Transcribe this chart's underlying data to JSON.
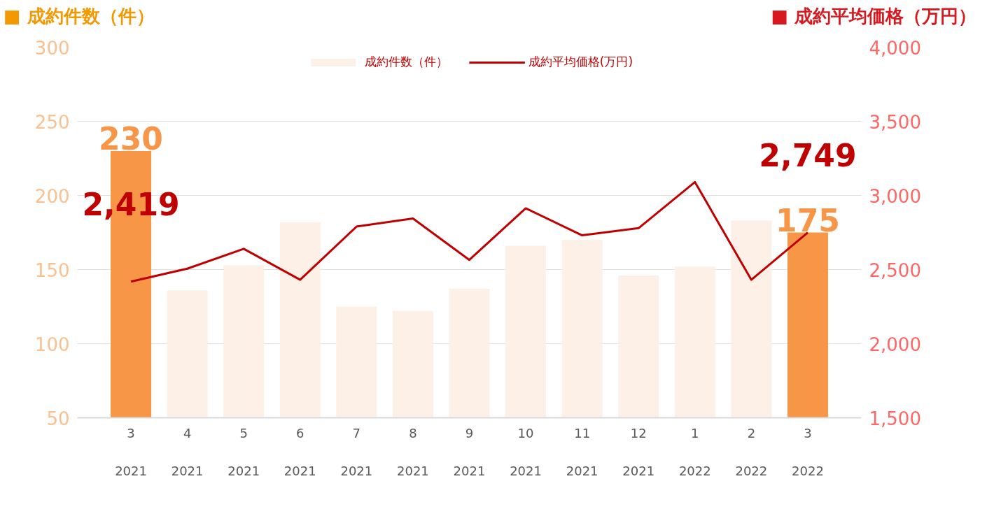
{
  "chart_data": {
    "type": "bar",
    "ylabel": "■ 成約件数（件）",
    "y2label": "■ 成約平均価格（万円）",
    "categories": [
      "3\n2021",
      "4\n2021",
      "5\n2021",
      "6\n2021",
      "7\n2021",
      "8\n2021",
      "9\n2021",
      "10\n2021",
      "11\n2021",
      "12\n2021",
      "1\n2022",
      "2\n2022",
      "3\n2022"
    ],
    "series": [
      {
        "name": "成約件数（件）",
        "color": "#fdf0e6",
        "colors": [
          "#f79646",
          "#fdf0e6",
          "#fdf0e6",
          "#fdf0e6",
          "#fdf0e6",
          "#fdf0e6",
          "#fdf0e6",
          "#fdf0e6",
          "#fdf0e6",
          "#fdf0e6",
          "#fdf0e6",
          "#fdf0e6",
          "#f79646"
        ],
        "values": [
          230,
          136,
          153,
          182,
          125,
          122,
          137,
          166,
          170,
          146,
          152,
          183,
          175
        ],
        "value_labels": [
          "230",
          null,
          null,
          null,
          null,
          null,
          null,
          null,
          null,
          null,
          null,
          null,
          "175"
        ]
      },
      {
        "name": "成約平均価格(万円)",
        "type": "line",
        "axis": "y2",
        "color": "#c00000",
        "values": [
          2419,
          2506,
          2640,
          2431,
          2790,
          2844,
          2565,
          2913,
          2731,
          2779,
          3090,
          2431,
          2749
        ],
        "value_labels": [
          "2,419",
          null,
          null,
          null,
          null,
          null,
          null,
          null,
          null,
          null,
          null,
          null,
          "2,749"
        ]
      }
    ],
    "ylim": [
      50,
      300
    ],
    "yticks": [
      50,
      100,
      150,
      200,
      250,
      300
    ],
    "y2lim": [
      1500,
      4000
    ],
    "y2ticks": [
      {
        "value": 1500,
        "label": "1,500"
      },
      {
        "value": 2000,
        "label": "2,000"
      },
      {
        "value": 2500,
        "label": "2,500"
      },
      {
        "value": 3000,
        "label": "3,000"
      },
      {
        "value": 3500,
        "label": "3,500"
      },
      {
        "value": 4000,
        "label": "4,000"
      }
    ],
    "grid": "y",
    "legend": "top"
  }
}
